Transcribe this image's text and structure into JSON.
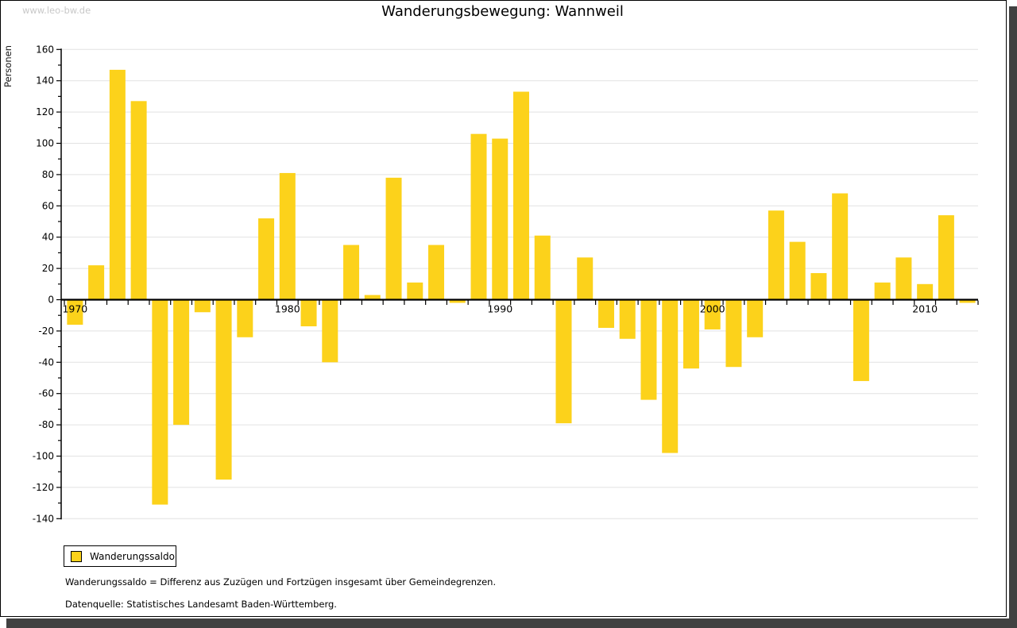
{
  "header": {
    "watermark": "www.leo-bw.de",
    "title": "Wanderungsbewegung: Wannweil"
  },
  "legend": {
    "label": "Wanderungssaldo"
  },
  "footnotes": {
    "line1": "Wanderungssaldo = Differenz aus Zuzügen und Fortzügen insgesamt über Gemeindegrenzen.",
    "line2": "Datenquelle: Statistisches Landesamt Baden-Württemberg."
  },
  "colors": {
    "bar": "#fcd21b",
    "grid": "#e2e2e2",
    "axis": "#000000",
    "text": "#000000",
    "watermark": "#c8c8c8",
    "shadow": "#414141"
  },
  "chart_data": {
    "type": "bar",
    "title": "Wanderungsbewegung: Wannweil",
    "xlabel": "",
    "ylabel": "Personen",
    "ylim": [
      -140,
      160
    ],
    "ytick_step": 20,
    "yminor_step": 10,
    "grid": true,
    "legend_position": "bottom-left",
    "xticks": [
      1970,
      1980,
      1990,
      2000,
      2010
    ],
    "years": [
      1970,
      1971,
      1972,
      1973,
      1974,
      1975,
      1976,
      1977,
      1978,
      1979,
      1980,
      1981,
      1982,
      1983,
      1984,
      1985,
      1986,
      1987,
      1988,
      1989,
      1990,
      1991,
      1992,
      1993,
      1994,
      1995,
      1996,
      1997,
      1998,
      1999,
      2000,
      2001,
      2002,
      2003,
      2004,
      2005,
      2006,
      2007,
      2008,
      2009,
      2010,
      2011,
      2012
    ],
    "series": [
      {
        "name": "Wanderungssaldo",
        "values": [
          -16,
          22,
          147,
          127,
          -131,
          -80,
          -8,
          -115,
          -24,
          52,
          81,
          -17,
          -40,
          35,
          3,
          78,
          11,
          35,
          -2,
          106,
          103,
          133,
          41,
          -79,
          27,
          -18,
          -25,
          -64,
          -98,
          -44,
          -19,
          -43,
          -24,
          57,
          37,
          17,
          68,
          -52,
          11,
          27,
          10,
          54,
          -2
        ]
      }
    ]
  }
}
